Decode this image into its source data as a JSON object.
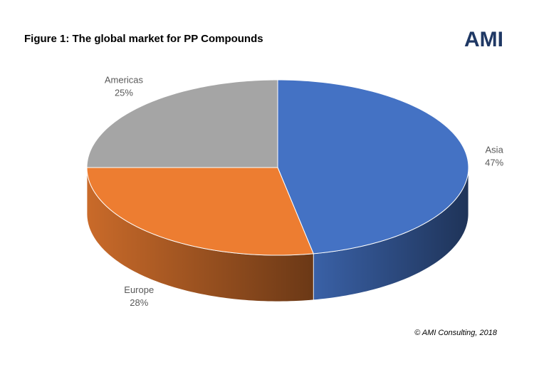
{
  "chart_data": {
    "type": "pie",
    "title": "Figure 1: The global market for PP Compounds",
    "logo": "AMI",
    "credit": "© AMI Consulting, 2018",
    "categories": [
      "Asia",
      "Europe",
      "Americas"
    ],
    "values": [
      47,
      28,
      25
    ],
    "value_labels": [
      "47%",
      "28%",
      "25%"
    ],
    "colors": [
      "#4472c4",
      "#ed7d31",
      "#a5a5a5"
    ]
  }
}
